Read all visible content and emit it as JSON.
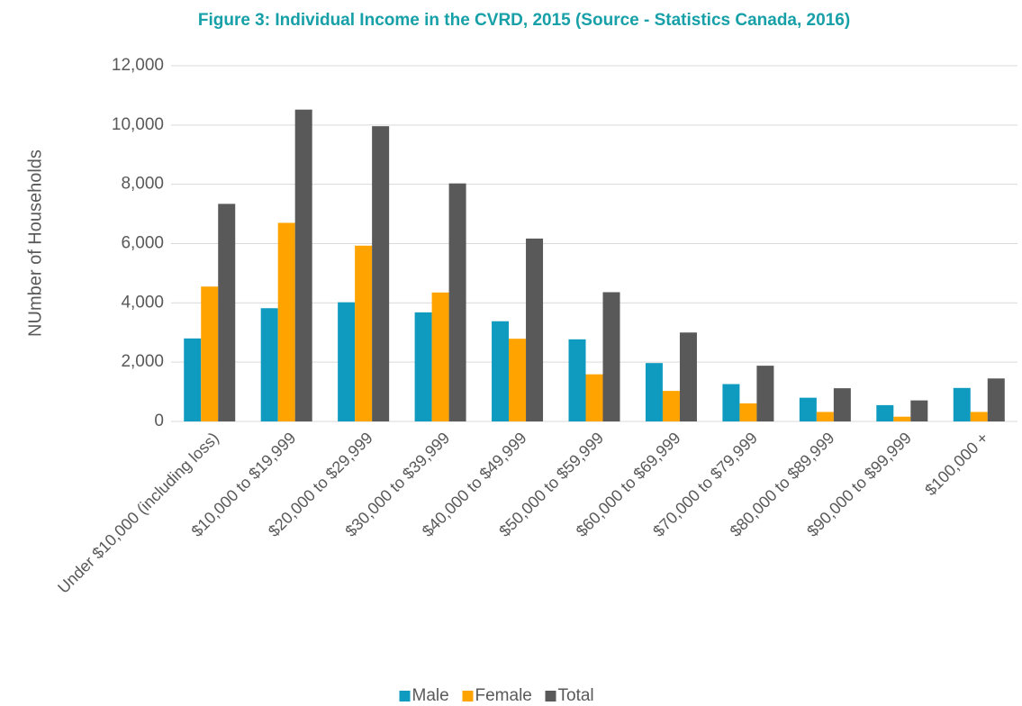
{
  "chart_data": {
    "type": "bar",
    "title": "Figure 3: Individual Income in the CVRD, 2015 (Source - Statistics Canada, 2016)",
    "y_label": "NUmber of Households",
    "categories": [
      "Under $10,000 (including loss)",
      "$10,000 to $19,999",
      "$20,000 to $29,999",
      "$30,000 to $39,999",
      "$40,000 to $49,999",
      "$50,000 to $59,999",
      "$60,000 to $69,999",
      "$70,000 to $79,999",
      "$80,000 to $89,999",
      "$90,000 to $99,999",
      "$100,000 +"
    ],
    "series": [
      {
        "name": "Male",
        "color": "#0e9bbf",
        "values": [
          2800,
          3820,
          4020,
          3680,
          3380,
          2770,
          1970,
          1260,
          800,
          550,
          1130
        ]
      },
      {
        "name": "Female",
        "color": "#ffa300",
        "values": [
          4550,
          6700,
          5930,
          4350,
          2790,
          1590,
          1030,
          610,
          320,
          160,
          320
        ]
      },
      {
        "name": "Total",
        "color": "#595959",
        "values": [
          7340,
          10520,
          9960,
          8030,
          6170,
          4360,
          3000,
          1880,
          1120,
          710,
          1450
        ]
      }
    ],
    "ylim": [
      0,
      12000
    ],
    "yticks": [
      0,
      {
        "value": 2000,
        "label": "2,000"
      },
      {
        "value": 4000,
        "label": "4,000"
      },
      {
        "value": 6000,
        "label": "6,000"
      },
      {
        "value": 8000,
        "label": "8,000"
      },
      {
        "value": 10000,
        "label": "10,000"
      },
      {
        "value": 12000,
        "label": "12,000"
      }
    ],
    "grid": true,
    "legend": "bottom"
  }
}
